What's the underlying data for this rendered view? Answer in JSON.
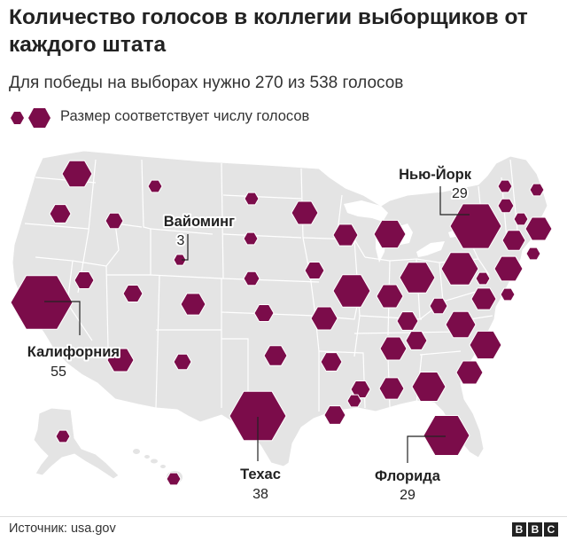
{
  "title": "Количество голосов в коллегии выборщиков от каждого штата",
  "subtitle": "Для победы на выборах нужно 270 из 538 голосов",
  "legend": {
    "text": "Размер соответствует числу голосов",
    "icons": [
      "small-hexagon-icon",
      "large-hexagon-icon"
    ]
  },
  "colors": {
    "hexagon_fill": "#7b0c4a",
    "land_fill": "#e4e4e4",
    "border": "#ffffff",
    "leader_line": "#222222"
  },
  "labels": {
    "ny_name": "Нью-Йорк",
    "ny_value": "29",
    "wy_name": "Вайоминг",
    "wy_value": "3",
    "ca_name": "Калифорния",
    "ca_value": "55",
    "tx_name": "Техас",
    "tx_value": "38",
    "fl_name": "Флорида",
    "fl_value": "29"
  },
  "source": "Источник: usa.gov",
  "brand": [
    "B",
    "B",
    "C"
  ]
}
